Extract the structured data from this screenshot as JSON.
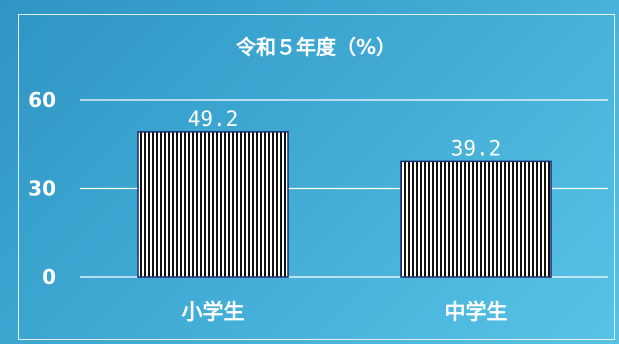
{
  "chart_data": {
    "type": "bar",
    "title": "令和５年度（%）",
    "categories": [
      "小学生",
      "中学生"
    ],
    "values": [
      49.2,
      39.2
    ],
    "value_labels": [
      "49.2",
      "39.2"
    ],
    "y_ticks": [
      0,
      30,
      60
    ],
    "ylim": [
      0,
      60
    ],
    "grid": true,
    "bar_pattern": "vertical-stripes",
    "colors": {
      "background": "#3fa9d3",
      "text": "#ffffff",
      "gridline": "#ffffff",
      "bar_fill": "#ffffff",
      "bar_stripe": "#111111",
      "bar_border": "#1a2a6c"
    }
  }
}
